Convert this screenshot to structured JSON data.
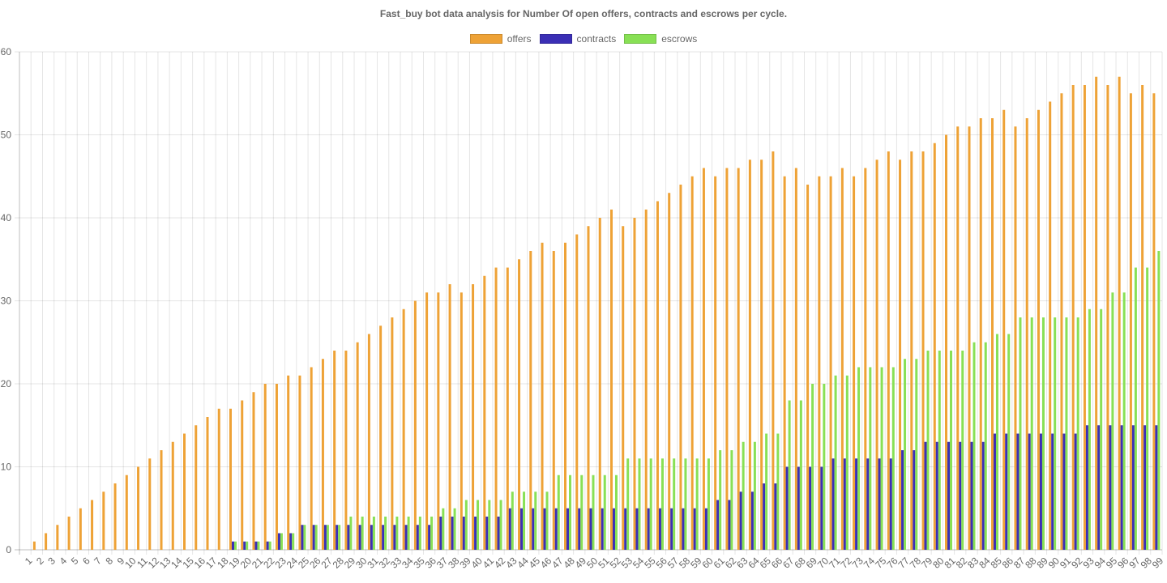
{
  "chart_data": {
    "type": "bar",
    "title": "Fast_buy bot data analysis for Number Of open offers, contracts and escrows per cycle.",
    "legend_position": "top",
    "grid": true,
    "ylim": [
      0,
      60
    ],
    "yticks": [
      0,
      10,
      20,
      30,
      40,
      50,
      60
    ],
    "categories": [
      "1",
      "2",
      "3",
      "4",
      "5",
      "6",
      "7",
      "8",
      "9",
      "10",
      "11",
      "12",
      "13",
      "14",
      "15",
      "16",
      "17",
      "18",
      "19",
      "20",
      "21",
      "22",
      "23",
      "24",
      "25",
      "26",
      "27",
      "28",
      "29",
      "30",
      "31",
      "32",
      "33",
      "34",
      "35",
      "36",
      "37",
      "38",
      "39",
      "40",
      "41",
      "42",
      "43",
      "44",
      "45",
      "46",
      "47",
      "48",
      "49",
      "50",
      "51",
      "52",
      "53",
      "54",
      "55",
      "56",
      "57",
      "58",
      "59",
      "60",
      "61",
      "62",
      "63",
      "64",
      "65",
      "66",
      "67",
      "68",
      "69",
      "70",
      "71",
      "72",
      "73",
      "74",
      "75",
      "76",
      "77",
      "78",
      "79",
      "80",
      "81",
      "82",
      "83",
      "84",
      "85",
      "86",
      "87",
      "88",
      "89",
      "90",
      "91",
      "92",
      "93",
      "94",
      "95",
      "96",
      "97",
      "98",
      "99"
    ],
    "series": [
      {
        "name": "offers",
        "color": "#eea236",
        "values": [
          0,
          1,
          2,
          3,
          4,
          5,
          6,
          7,
          8,
          9,
          10,
          11,
          12,
          13,
          14,
          15,
          16,
          17,
          17,
          18,
          19,
          20,
          20,
          21,
          21,
          22,
          23,
          24,
          24,
          25,
          26,
          27,
          28,
          29,
          30,
          31,
          31,
          32,
          31,
          32,
          33,
          34,
          34,
          35,
          36,
          37,
          36,
          37,
          38,
          39,
          40,
          41,
          39,
          40,
          41,
          42,
          43,
          44,
          45,
          46,
          45,
          46,
          46,
          47,
          47,
          48,
          45,
          46,
          44,
          45,
          45,
          46,
          45,
          46,
          47,
          48,
          47,
          48,
          48,
          49,
          50,
          51,
          51,
          52,
          52,
          53,
          51,
          52,
          53,
          54,
          55,
          56,
          56,
          57,
          56,
          57,
          55,
          56,
          55
        ]
      },
      {
        "name": "contracts",
        "color": "#3b2fb5",
        "values": [
          0,
          0,
          0,
          0,
          0,
          0,
          0,
          0,
          0,
          0,
          0,
          0,
          0,
          0,
          0,
          0,
          0,
          0,
          1,
          1,
          1,
          1,
          2,
          2,
          3,
          3,
          3,
          3,
          3,
          3,
          3,
          3,
          3,
          3,
          3,
          3,
          4,
          4,
          4,
          4,
          4,
          4,
          5,
          5,
          5,
          5,
          5,
          5,
          5,
          5,
          5,
          5,
          5,
          5,
          5,
          5,
          5,
          5,
          5,
          5,
          6,
          6,
          7,
          7,
          8,
          8,
          10,
          10,
          10,
          10,
          11,
          11,
          11,
          11,
          11,
          11,
          12,
          12,
          13,
          13,
          13,
          13,
          13,
          13,
          14,
          14,
          14,
          14,
          14,
          14,
          14,
          14,
          15,
          15,
          15,
          15,
          15,
          15,
          15
        ]
      },
      {
        "name": "escrows",
        "color": "#88e055",
        "values": [
          0,
          0,
          0,
          0,
          0,
          0,
          0,
          0,
          0,
          0,
          0,
          0,
          0,
          0,
          0,
          0,
          0,
          0,
          1,
          1,
          1,
          1,
          2,
          2,
          3,
          3,
          3,
          3,
          4,
          4,
          4,
          4,
          4,
          4,
          4,
          4,
          5,
          5,
          6,
          6,
          6,
          6,
          7,
          7,
          7,
          7,
          9,
          9,
          9,
          9,
          9,
          9,
          11,
          11,
          11,
          11,
          11,
          11,
          11,
          11,
          12,
          12,
          13,
          13,
          14,
          14,
          18,
          18,
          20,
          20,
          21,
          21,
          22,
          22,
          22,
          22,
          23,
          23,
          24,
          24,
          24,
          24,
          25,
          25,
          26,
          26,
          28,
          28,
          28,
          28,
          28,
          28,
          29,
          29,
          31,
          31,
          34,
          34,
          36
        ]
      }
    ]
  }
}
